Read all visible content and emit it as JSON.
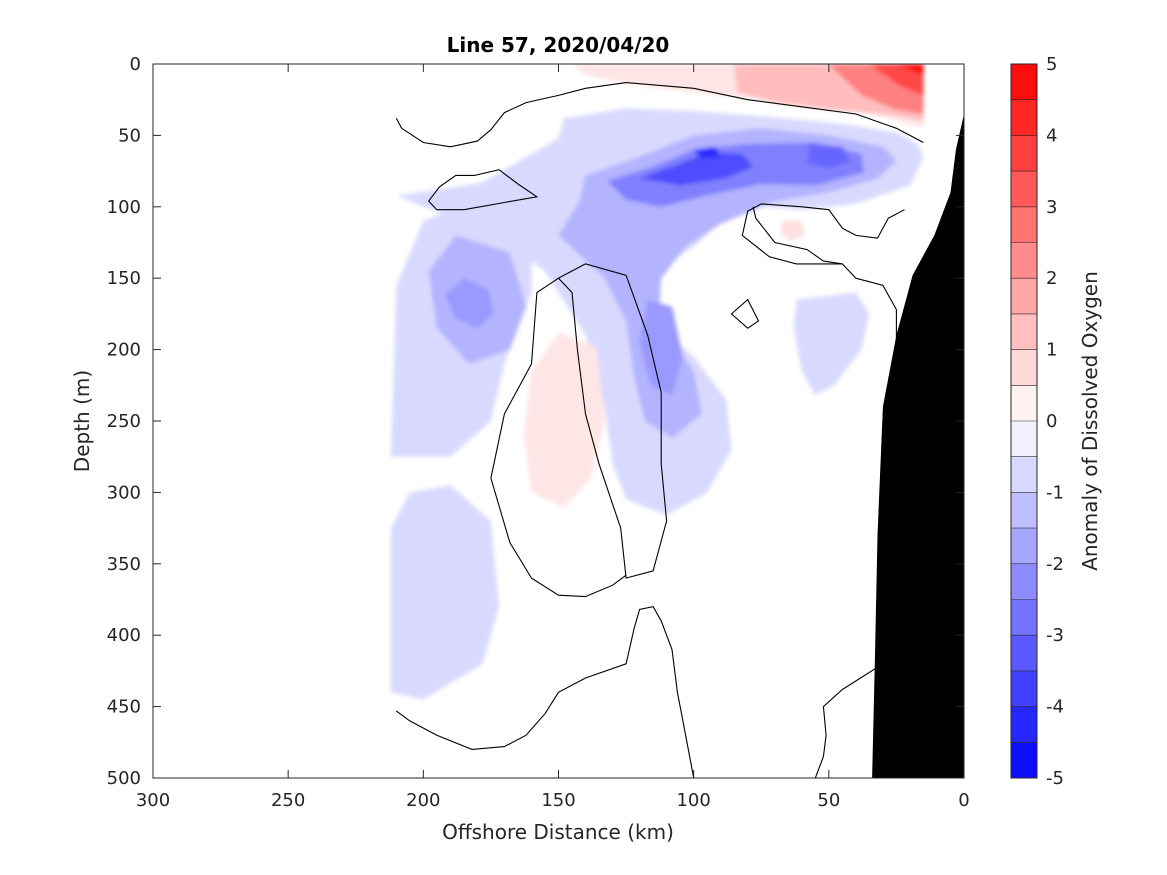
{
  "chart_data": {
    "type": "heatmap",
    "subtype": "filled-contour section",
    "title": "Line 57, 2020/04/20",
    "xlabel": "Offshore Distance (km)",
    "ylabel": "Depth (m)",
    "colorbar_label": "Anomaly of Dissolved Oxygen",
    "x_reversed": true,
    "y_reversed": true,
    "xlim": [
      0,
      300
    ],
    "ylim": [
      0,
      500
    ],
    "x_ticks": [
      300,
      250,
      200,
      150,
      100,
      50,
      0
    ],
    "y_ticks": [
      0,
      50,
      100,
      150,
      200,
      250,
      300,
      350,
      400,
      450,
      500
    ],
    "colorbar": {
      "range": [
        -5,
        5
      ],
      "step": 0.5,
      "ticks": [
        5,
        4,
        3,
        2,
        1,
        0,
        -1,
        -2,
        -3,
        -4,
        -5
      ],
      "negative_color": "#0000ff",
      "positive_color": "#ff0000",
      "neutral_color": "#ffffff"
    },
    "data_extent_km": [
      15,
      210
    ],
    "seafloor_color": "#000000",
    "seafloor": [
      {
        "x": 0,
        "y": 35
      },
      {
        "x": 3,
        "y": 60
      },
      {
        "x": 5,
        "y": 90
      },
      {
        "x": 11,
        "y": 120
      },
      {
        "x": 19,
        "y": 148
      },
      {
        "x": 25,
        "y": 190
      },
      {
        "x": 30,
        "y": 240
      },
      {
        "x": 32,
        "y": 330
      },
      {
        "x": 33,
        "y": 420
      },
      {
        "x": 34,
        "y": 500
      }
    ],
    "features": [
      {
        "label": "surface positive anomaly",
        "anomaly": 5.0,
        "peak": {
          "x": 22,
          "y": 5
        }
      },
      {
        "label": "subsurface negative core",
        "anomaly": -4.0,
        "peak": {
          "x": 95,
          "y": 62
        }
      },
      {
        "label": "secondary negative core",
        "anomaly": -3.5,
        "peak": {
          "x": 50,
          "y": 60
        }
      },
      {
        "label": "mid-depth negative anomaly",
        "anomaly": -2.0,
        "peak": {
          "x": 182,
          "y": 165
        }
      },
      {
        "label": "mid-depth negative anomaly",
        "anomaly": -2.0,
        "peak": {
          "x": 108,
          "y": 200
        }
      },
      {
        "label": "weak positive anomaly",
        "anomaly": 0.5,
        "peak": {
          "x": 150,
          "y": 260
        }
      },
      {
        "label": "weak positive anomaly",
        "anomaly": 0.5,
        "peak": {
          "x": 65,
          "y": 115
        }
      },
      {
        "label": "deep negative anomaly",
        "anomaly": -1.0,
        "peak": {
          "x": 190,
          "y": 380
        }
      }
    ]
  }
}
